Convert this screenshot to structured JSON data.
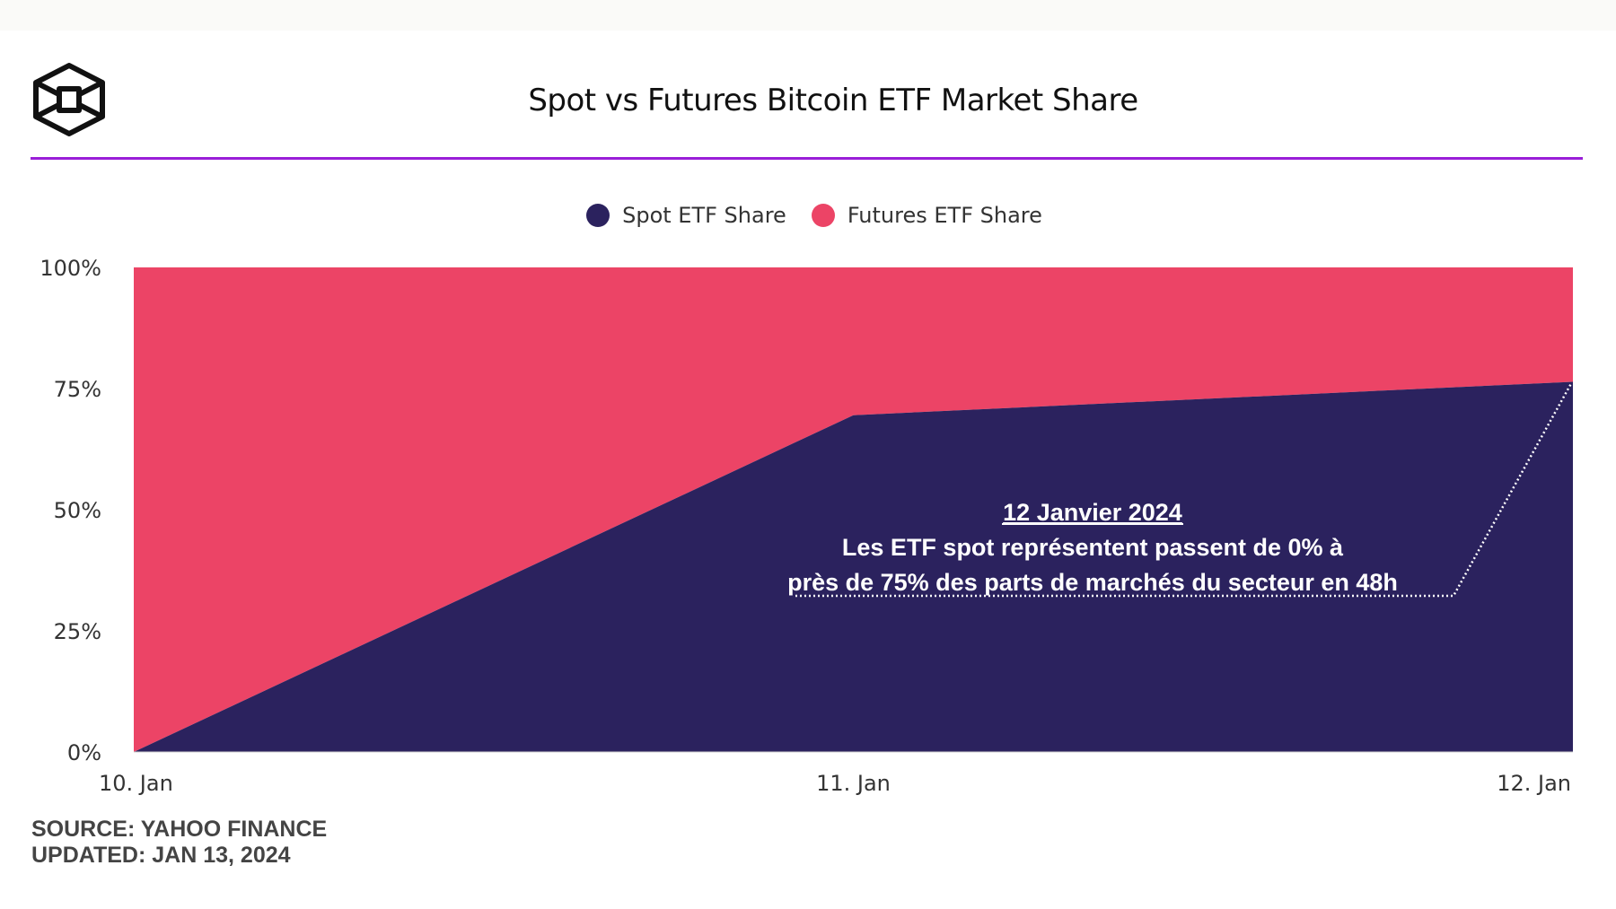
{
  "header": {
    "title": "Spot vs Futures Bitcoin ETF Market Share",
    "logo": "cube-logo"
  },
  "chart_data": {
    "type": "area",
    "stacked": true,
    "normalized": true,
    "title": "Spot vs Futures Bitcoin ETF Market Share",
    "x": [
      "10. Jan",
      "11. Jan",
      "12. Jan"
    ],
    "series": [
      {
        "name": "Spot ETF Share",
        "values": [
          0,
          69.5,
          76.4
        ],
        "color": "#2b225e"
      },
      {
        "name": "Futures ETF Share",
        "values": [
          100,
          30.5,
          23.6
        ],
        "color": "#ec4466"
      }
    ],
    "yticks": [
      "0%",
      "25%",
      "50%",
      "75%",
      "100%"
    ],
    "ylim": [
      0,
      100
    ],
    "xlabel": "",
    "ylabel": "",
    "grid": false,
    "legend": "top-center",
    "annotation": {
      "title": "12 Janvier 2024",
      "line1": "Les ETF spot représentent passent de 0% à",
      "line2": "près de 75% des parts de marchés du secteur en 48h"
    }
  },
  "footer": {
    "source": "SOURCE: YAHOO FINANCE",
    "updated": "UPDATED: JAN 13, 2024"
  },
  "colors": {
    "accent_rule": "#9a1fd8",
    "spot": "#2b225e",
    "futures": "#ec4466"
  }
}
